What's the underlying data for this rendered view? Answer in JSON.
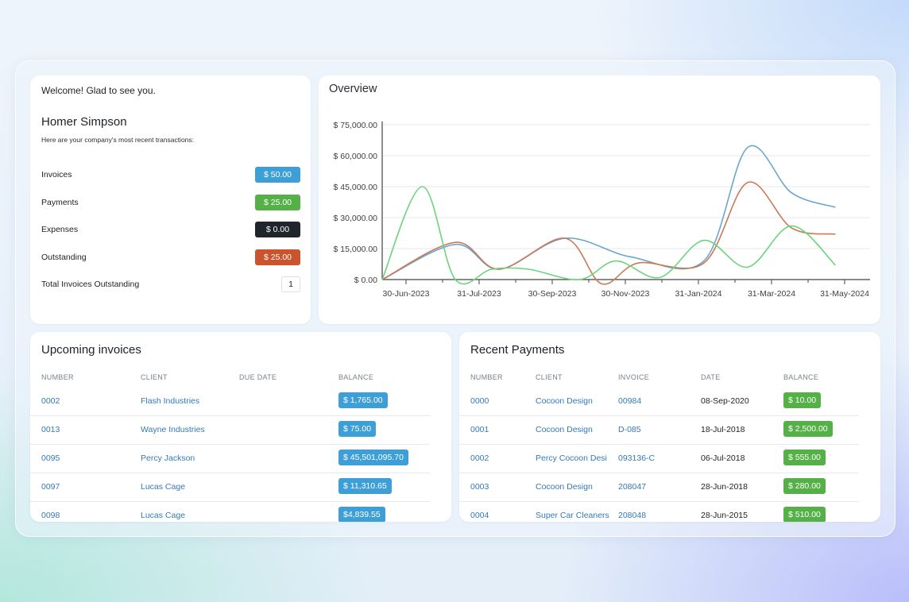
{
  "welcome": {
    "greeting": "Welcome! Glad to see you.",
    "user_name": "Homer Simpson",
    "subtitle": "Here are your company's most recent transactions:",
    "stats": [
      {
        "label": "Invoices",
        "value": "$ 50.00",
        "color": "#3e9ed6"
      },
      {
        "label": "Payments",
        "value": "$ 25.00",
        "color": "#56b048"
      },
      {
        "label": "Expenses",
        "value": "$ 0.00",
        "color": "#1f252b"
      },
      {
        "label": "Outstanding",
        "value": "$ 25.00",
        "color": "#c9542e"
      }
    ],
    "total_label": "Total Invoices Outstanding",
    "total_value": "1"
  },
  "overview": {
    "title": "Overview",
    "chart_data": {
      "type": "line",
      "y_ticks": [
        "$ 75,000.00",
        "$ 60,000.00",
        "$ 45,000.00",
        "$ 30,000.00",
        "$ 15,000.00",
        "$ 0.00"
      ],
      "ylim": [
        0,
        75000
      ],
      "x_ticks": [
        "30-Jun-2023",
        "31-Jul-2023",
        "30-Sep-2023",
        "30-Nov-2023",
        "31-Jan-2024",
        "31-Mar-2024",
        "31-May-2024"
      ],
      "grid": true,
      "series": [
        {
          "color": "#6aa6cf",
          "points": [
            [
              0,
              0
            ],
            [
              1,
              17000
            ],
            [
              1.6,
              5000
            ],
            [
              2.5,
              20000
            ],
            [
              3.4,
              11000
            ],
            [
              4.4,
              9000
            ],
            [
              5.0,
              64000
            ],
            [
              5.6,
              42000
            ],
            [
              6.2,
              35000
            ]
          ]
        },
        {
          "color": "#c97a57",
          "points": [
            [
              0,
              0
            ],
            [
              1,
              18000
            ],
            [
              1.6,
              5000
            ],
            [
              2.5,
              20000
            ],
            [
              3.0,
              -2000
            ],
            [
              3.5,
              8000
            ],
            [
              4.4,
              8000
            ],
            [
              5.0,
              47000
            ],
            [
              5.6,
              25000
            ],
            [
              6.2,
              22000
            ]
          ]
        },
        {
          "color": "#6bd47c",
          "points": [
            [
              0,
              0
            ],
            [
              0.55,
              45000
            ],
            [
              1.0,
              0
            ],
            [
              1.5,
              5000
            ],
            [
              2.0,
              5000
            ],
            [
              2.7,
              0
            ],
            [
              3.2,
              9000
            ],
            [
              3.8,
              1000
            ],
            [
              4.4,
              19000
            ],
            [
              5.0,
              6000
            ],
            [
              5.6,
              26000
            ],
            [
              6.2,
              7000
            ]
          ]
        }
      ]
    }
  },
  "upcoming": {
    "title": "Upcoming invoices",
    "columns": [
      "NUMBER",
      "CLIENT",
      "DUE DATE",
      "BALANCE"
    ],
    "rows": [
      {
        "number": "0002",
        "client": "Flash Industries",
        "due": "",
        "balance": "$ 1,765.00"
      },
      {
        "number": "0013",
        "client": "Wayne Industries",
        "due": "",
        "balance": "$ 75.00"
      },
      {
        "number": "0095",
        "client": "Percy Jackson",
        "due": "",
        "balance": "$ 45,501,095.70"
      },
      {
        "number": "0097",
        "client": "Lucas Cage",
        "due": "",
        "balance": "$ 11,310.65"
      },
      {
        "number": "0098",
        "client": "Lucas Cage",
        "due": "",
        "balance": "$4,839.55"
      }
    ]
  },
  "payments": {
    "title": "Recent Payments",
    "columns": [
      "NUMBER",
      "CLIENT",
      "INVOICE",
      "DATE",
      "BALANCE"
    ],
    "rows": [
      {
        "number": "0000",
        "client": "Cocoon Design",
        "invoice": "00984",
        "date": "08-Sep-2020",
        "balance": "$ 10.00"
      },
      {
        "number": "0001",
        "client": "Cocoon Design",
        "invoice": "D-085",
        "date": "18-Jul-2018",
        "balance": "$ 2,500.00"
      },
      {
        "number": "0002",
        "client": "Percy Cocoon Desi",
        "invoice": "093136-C",
        "date": "06-Jul-2018",
        "balance": "$ 555.00"
      },
      {
        "number": "0003",
        "client": "Cocoon Design",
        "invoice": "208047",
        "date": "28-Jun-2018",
        "balance": "$ 280.00"
      },
      {
        "number": "0004",
        "client": "Super Car Cleaners",
        "invoice": "208048",
        "date": "28-Jun-2015",
        "balance": "$ 510.00"
      }
    ]
  }
}
